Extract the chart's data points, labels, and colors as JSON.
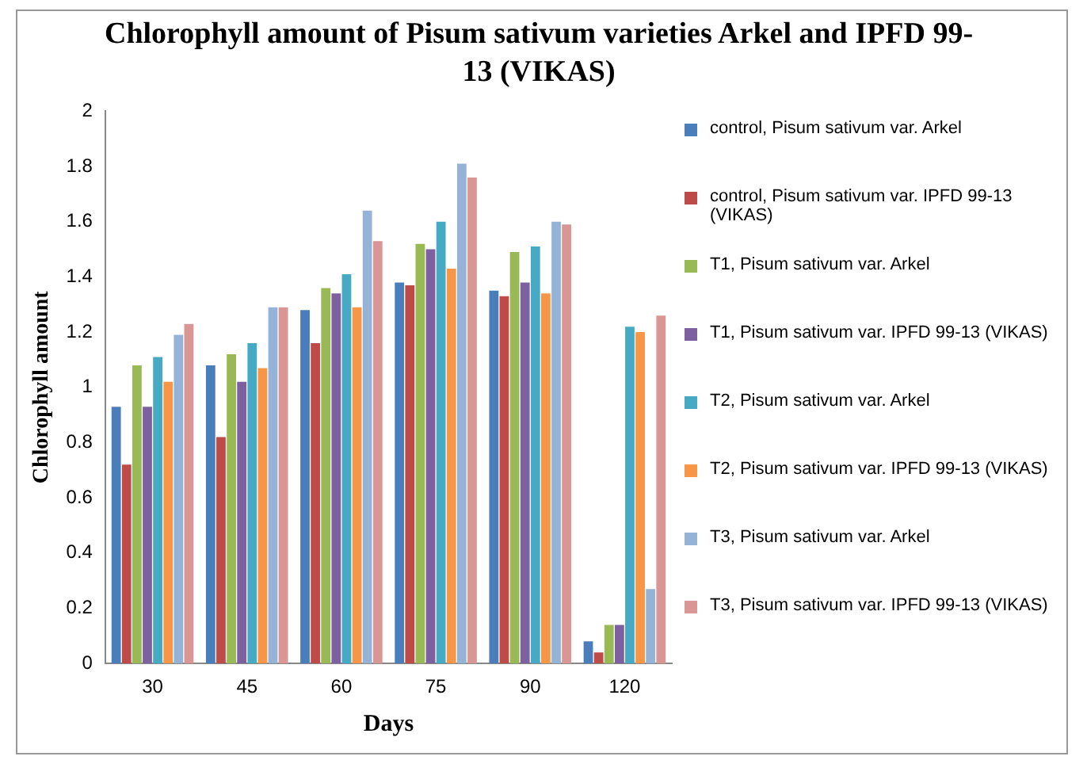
{
  "chart_data": {
    "type": "bar",
    "title": "Chlorophyll amount of Pisum sativum varieties Arkel and IPFD 99-13 (VIKAS)",
    "xlabel": "Days",
    "ylabel": "Chlorophyll amount",
    "categories": [
      "30",
      "45",
      "60",
      "75",
      "90",
      "120"
    ],
    "series": [
      {
        "name": "control, Pisum sativum var. Arkel",
        "color": "#4a7ebb",
        "values": [
          0.93,
          1.08,
          1.28,
          1.38,
          1.35,
          0.08
        ]
      },
      {
        "name": "control, Pisum sativum var. IPFD 99-13 (VIKAS)",
        "color": "#be4b48",
        "values": [
          0.72,
          0.82,
          1.16,
          1.37,
          1.33,
          0.04
        ]
      },
      {
        "name": "T1, Pisum sativum var. Arkel",
        "color": "#98b954",
        "values": [
          1.08,
          1.12,
          1.36,
          1.52,
          1.49,
          0.14
        ]
      },
      {
        "name": "T1, Pisum sativum var. IPFD 99-13 (VIKAS)",
        "color": "#7d60a0",
        "values": [
          0.93,
          1.02,
          1.34,
          1.5,
          1.38,
          0.14
        ]
      },
      {
        "name": "T2, Pisum sativum var. Arkel",
        "color": "#46aac5",
        "values": [
          1.11,
          1.16,
          1.41,
          1.6,
          1.51,
          1.22
        ]
      },
      {
        "name": "T2, Pisum sativum var. IPFD 99-13 (VIKAS)",
        "color": "#f79646",
        "values": [
          1.02,
          1.07,
          1.29,
          1.43,
          1.34,
          1.2
        ]
      },
      {
        "name": "T3, Pisum sativum var. Arkel",
        "color": "#95b3d7",
        "values": [
          1.19,
          1.29,
          1.64,
          1.81,
          1.6,
          0.27
        ]
      },
      {
        "name": "T3, Pisum sativum var. IPFD 99-13 (VIKAS)",
        "color": "#d99694",
        "values": [
          1.23,
          1.29,
          1.53,
          1.76,
          1.59,
          1.26
        ]
      }
    ],
    "ylim": [
      0,
      2
    ],
    "yticks": [
      0,
      0.2,
      0.4,
      0.6,
      0.8,
      1,
      1.2,
      1.4,
      1.6,
      1.8,
      2
    ],
    "grid": false,
    "legend": "right"
  }
}
